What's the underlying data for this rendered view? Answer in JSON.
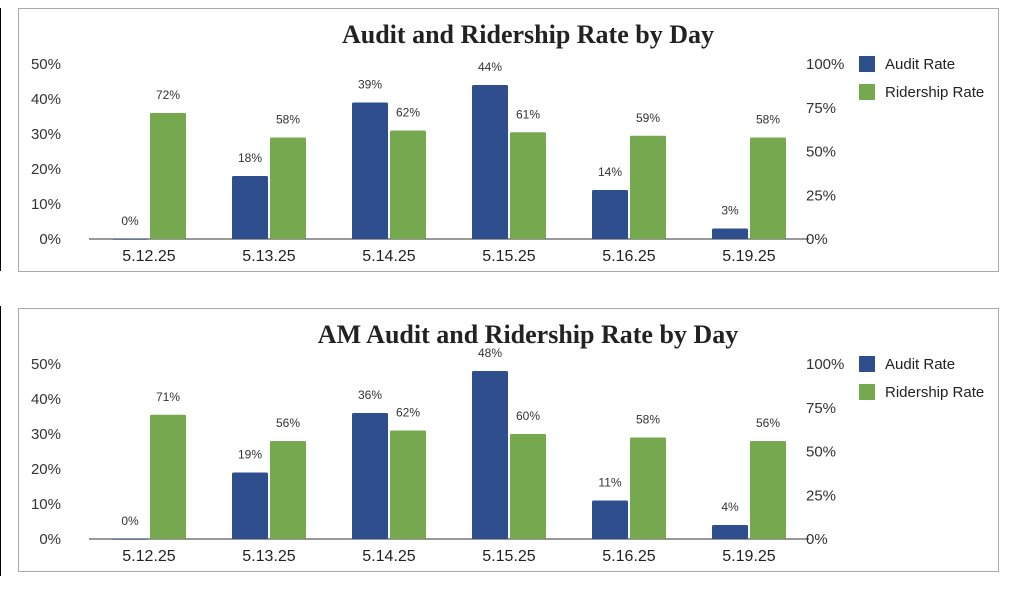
{
  "chart_data": [
    {
      "type": "bar",
      "title": "Audit and Ridership Rate by Day",
      "categories": [
        "5.12.25",
        "5.13.25",
        "5.14.25",
        "5.15.25",
        "5.16.25",
        "5.19.25"
      ],
      "series": [
        {
          "name": "Audit Rate",
          "axis": "left",
          "color": "#2f4e8e",
          "values": [
            0,
            18,
            39,
            44,
            14,
            3
          ],
          "labels": [
            "0%",
            "18%",
            "39%",
            "44%",
            "14%",
            "3%"
          ]
        },
        {
          "name": "Ridership Rate",
          "axis": "right",
          "color": "#76a84f",
          "values": [
            72,
            58,
            62,
            61,
            59,
            58
          ],
          "labels": [
            "72%",
            "58%",
            "62%",
            "61%",
            "59%",
            "58%"
          ]
        }
      ],
      "y_left": {
        "ylim": [
          0,
          50
        ],
        "ticks": [
          "0%",
          "10%",
          "20%",
          "30%",
          "40%",
          "50%"
        ]
      },
      "y_right": {
        "ylim": [
          0,
          100
        ],
        "ticks": [
          "0%",
          "25%",
          "50%",
          "75%",
          "100%"
        ]
      },
      "legend": "top-right",
      "grid": false
    },
    {
      "type": "bar",
      "title": "AM Audit and Ridership Rate by Day",
      "categories": [
        "5.12.25",
        "5.13.25",
        "5.14.25",
        "5.15.25",
        "5.16.25",
        "5.19.25"
      ],
      "series": [
        {
          "name": "Audit Rate",
          "axis": "left",
          "color": "#2f4e8e",
          "values": [
            0,
            19,
            36,
            48,
            11,
            4
          ],
          "labels": [
            "0%",
            "19%",
            "36%",
            "48%",
            "11%",
            "4%"
          ]
        },
        {
          "name": "Ridership Rate",
          "axis": "right",
          "color": "#76a84f",
          "values": [
            71,
            56,
            62,
            60,
            58,
            56
          ],
          "labels": [
            "71%",
            "56%",
            "62%",
            "60%",
            "58%",
            "56%"
          ]
        }
      ],
      "y_left": {
        "ylim": [
          0,
          50
        ],
        "ticks": [
          "0%",
          "10%",
          "20%",
          "30%",
          "40%",
          "50%"
        ]
      },
      "y_right": {
        "ylim": [
          0,
          100
        ],
        "ticks": [
          "0%",
          "25%",
          "50%",
          "75%",
          "100%"
        ]
      },
      "legend": "top-right",
      "grid": false
    }
  ]
}
